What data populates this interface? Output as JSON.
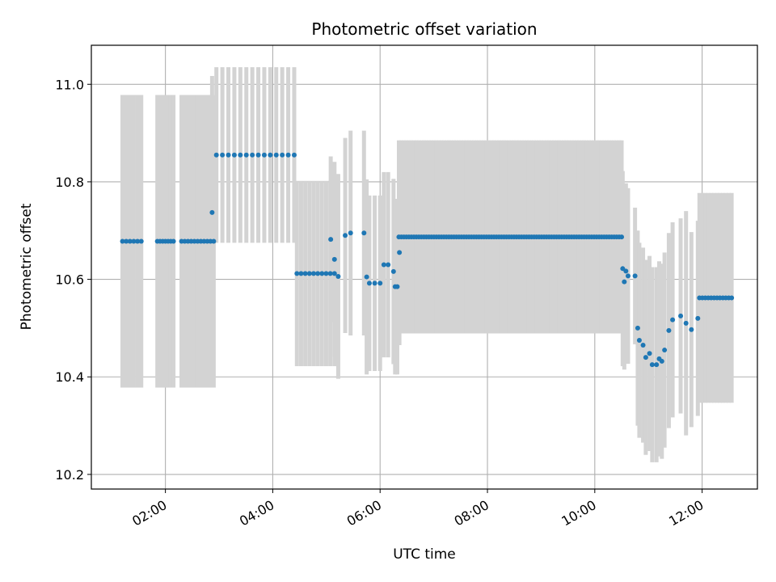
{
  "chart_data": {
    "type": "scatter",
    "title": "Photometric offset variation",
    "xlabel": "UTC time",
    "ylabel": "Photometric offset",
    "x_unit": "hours UTC",
    "xlim": [
      0.62,
      13.03
    ],
    "ylim": [
      10.17,
      11.08
    ],
    "x_ticks": [
      {
        "value": 2,
        "label": "02:00"
      },
      {
        "value": 4,
        "label": "04:00"
      },
      {
        "value": 6,
        "label": "06:00"
      },
      {
        "value": 8,
        "label": "08:00"
      },
      {
        "value": 10,
        "label": "10:00"
      },
      {
        "value": 12,
        "label": "12:00"
      }
    ],
    "y_ticks": [
      {
        "value": 10.2,
        "label": "10.2"
      },
      {
        "value": 10.4,
        "label": "10.4"
      },
      {
        "value": 10.6,
        "label": "10.6"
      },
      {
        "value": 10.8,
        "label": "10.8"
      },
      {
        "value": 11.0,
        "label": "11.0"
      }
    ],
    "grid": true,
    "x_tick_rotation": "30 degrees",
    "colors": {
      "points": "#1f77b4",
      "error_bars": "#d3d3d3",
      "grid": "#b0b0b0"
    },
    "series": [
      {
        "segments": [
          {
            "x_start": 1.2,
            "x_end": 1.55,
            "y": 10.678,
            "err": 0.3,
            "n": 6
          },
          {
            "x_start": 1.85,
            "x_end": 2.15,
            "y": 10.678,
            "err": 0.3,
            "n": 7
          },
          {
            "x_start": 2.3,
            "x_end": 2.9,
            "y": 10.678,
            "err": 0.3,
            "n": 11
          },
          {
            "x_start": 2.95,
            "x_end": 4.4,
            "y": 10.855,
            "err": 0.18,
            "n": 14
          },
          {
            "x_start": 4.45,
            "x_end": 5.15,
            "y": 10.612,
            "err": 0.19,
            "n": 10
          },
          {
            "x_start": 6.35,
            "x_end": 10.5,
            "y": 10.687,
            "err": 0.198,
            "n": 90
          },
          {
            "x_start": 11.95,
            "x_end": 12.55,
            "y": 10.562,
            "err": 0.215,
            "n": 12
          }
        ],
        "points": [
          {
            "x": 2.87,
            "y": 10.737,
            "err": 0.28
          },
          {
            "x": 5.08,
            "y": 10.682,
            "err": 0.17
          },
          {
            "x": 5.15,
            "y": 10.641,
            "err": 0.2
          },
          {
            "x": 5.22,
            "y": 10.606,
            "err": 0.21
          },
          {
            "x": 5.35,
            "y": 10.69,
            "err": 0.2
          },
          {
            "x": 5.45,
            "y": 10.695,
            "err": 0.21
          },
          {
            "x": 5.7,
            "y": 10.695,
            "err": 0.21
          },
          {
            "x": 5.75,
            "y": 10.605,
            "err": 0.2
          },
          {
            "x": 5.8,
            "y": 10.592,
            "err": 0.18
          },
          {
            "x": 5.9,
            "y": 10.592,
            "err": 0.18
          },
          {
            "x": 6.0,
            "y": 10.592,
            "err": 0.18
          },
          {
            "x": 6.07,
            "y": 10.63,
            "err": 0.19
          },
          {
            "x": 6.15,
            "y": 10.63,
            "err": 0.19
          },
          {
            "x": 6.25,
            "y": 10.616,
            "err": 0.19
          },
          {
            "x": 6.28,
            "y": 10.585,
            "err": 0.18
          },
          {
            "x": 6.32,
            "y": 10.585,
            "err": 0.18
          },
          {
            "x": 6.36,
            "y": 10.655,
            "err": 0.19
          },
          {
            "x": 10.52,
            "y": 10.622,
            "err": 0.2
          },
          {
            "x": 10.55,
            "y": 10.595,
            "err": 0.18
          },
          {
            "x": 10.58,
            "y": 10.617,
            "err": 0.18
          },
          {
            "x": 10.62,
            "y": 10.607,
            "err": 0.18
          },
          {
            "x": 10.75,
            "y": 10.607,
            "err": 0.14
          },
          {
            "x": 10.8,
            "y": 10.5,
            "err": 0.2
          },
          {
            "x": 10.83,
            "y": 10.475,
            "err": 0.2
          },
          {
            "x": 10.9,
            "y": 10.465,
            "err": 0.2
          },
          {
            "x": 10.95,
            "y": 10.44,
            "err": 0.2
          },
          {
            "x": 11.02,
            "y": 10.448,
            "err": 0.2
          },
          {
            "x": 11.07,
            "y": 10.425,
            "err": 0.2
          },
          {
            "x": 11.15,
            "y": 10.425,
            "err": 0.2
          },
          {
            "x": 11.2,
            "y": 10.437,
            "err": 0.2
          },
          {
            "x": 11.25,
            "y": 10.432,
            "err": 0.2
          },
          {
            "x": 11.3,
            "y": 10.455,
            "err": 0.2
          },
          {
            "x": 11.38,
            "y": 10.495,
            "err": 0.2
          },
          {
            "x": 11.45,
            "y": 10.517,
            "err": 0.2
          },
          {
            "x": 11.6,
            "y": 10.525,
            "err": 0.2
          },
          {
            "x": 11.7,
            "y": 10.51,
            "err": 0.23
          },
          {
            "x": 11.8,
            "y": 10.497,
            "err": 0.2
          },
          {
            "x": 11.92,
            "y": 10.52,
            "err": 0.2
          }
        ]
      }
    ]
  }
}
